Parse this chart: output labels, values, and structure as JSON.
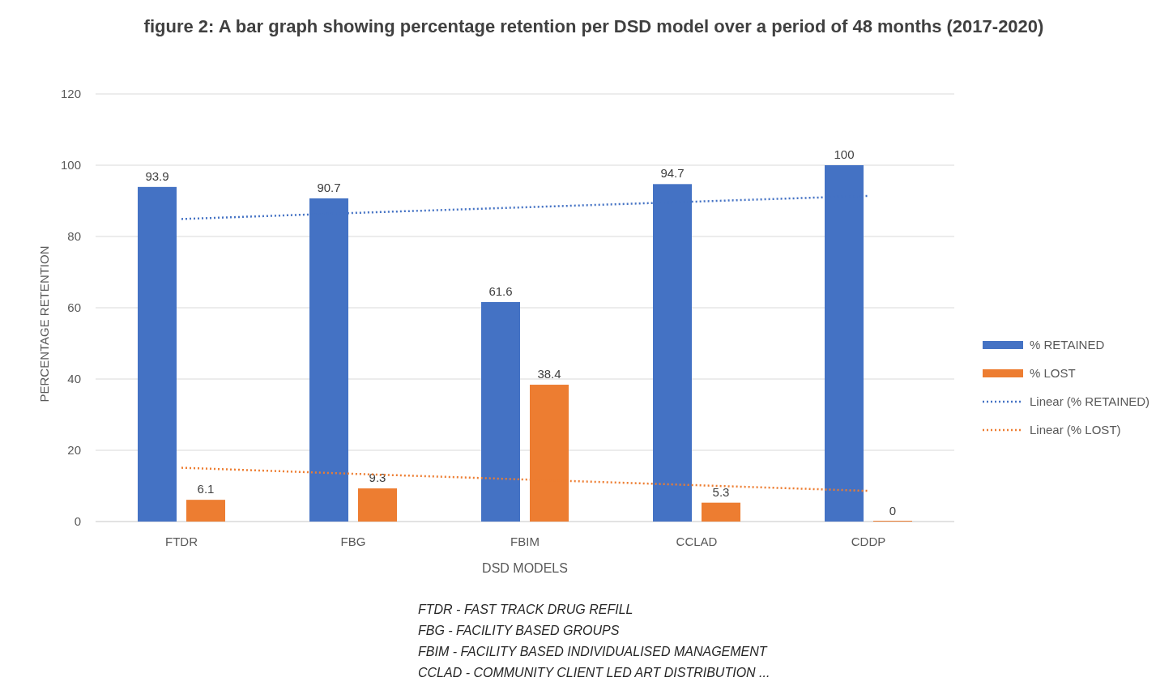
{
  "chart_data": {
    "type": "bar",
    "title": "figure 2: A bar graph showing percentage retention  per DSD model over a period of 48 months (2017-2020)",
    "xlabel": "DSD MODELS",
    "ylabel": "PERCENTAGE  RETENTION",
    "categories": [
      "FTDR",
      "FBG",
      "FBIM",
      "CCLAD",
      "CDDP"
    ],
    "series": [
      {
        "name": "% RETAINED",
        "color": "#4472c4",
        "values": [
          93.9,
          90.7,
          61.6,
          94.7,
          100
        ],
        "value_labels": [
          "93.9",
          "90.7",
          "61.6",
          "94.7",
          "100"
        ]
      },
      {
        "name": "% LOST",
        "color": "#ed7d31",
        "values": [
          6.1,
          9.3,
          38.4,
          5.3,
          0
        ],
        "value_labels": [
          "6.1",
          "9.3",
          "38.4",
          "5.3",
          "0"
        ]
      },
      {
        "name": "Linear (% RETAINED)",
        "type": "line",
        "line_style": "dotted",
        "color": "#4472c4",
        "values": [
          84.9,
          86.6,
          88.2,
          89.8,
          91.4
        ]
      },
      {
        "name": "Linear (% LOST)",
        "type": "line",
        "line_style": "dotted",
        "color": "#ed7d31",
        "values": [
          15.1,
          13.4,
          11.8,
          10.2,
          8.6
        ]
      }
    ],
    "ylim": [
      0,
      120
    ],
    "yticks": [
      0,
      20,
      40,
      60,
      80,
      100,
      120
    ],
    "grid": "y",
    "legend": "right",
    "annotations": [
      "FTDR  - FAST TRACK DRUG  REFILL",
      "FBG - FACILITY  BASED GROUPS",
      "FBIM  - FACILITY  BASED  INDIVIDUALISED  MANAGEMENT",
      "CCLAD - COMMUNITY  CLIENT LED ART DISTRIBUTION ..."
    ]
  }
}
